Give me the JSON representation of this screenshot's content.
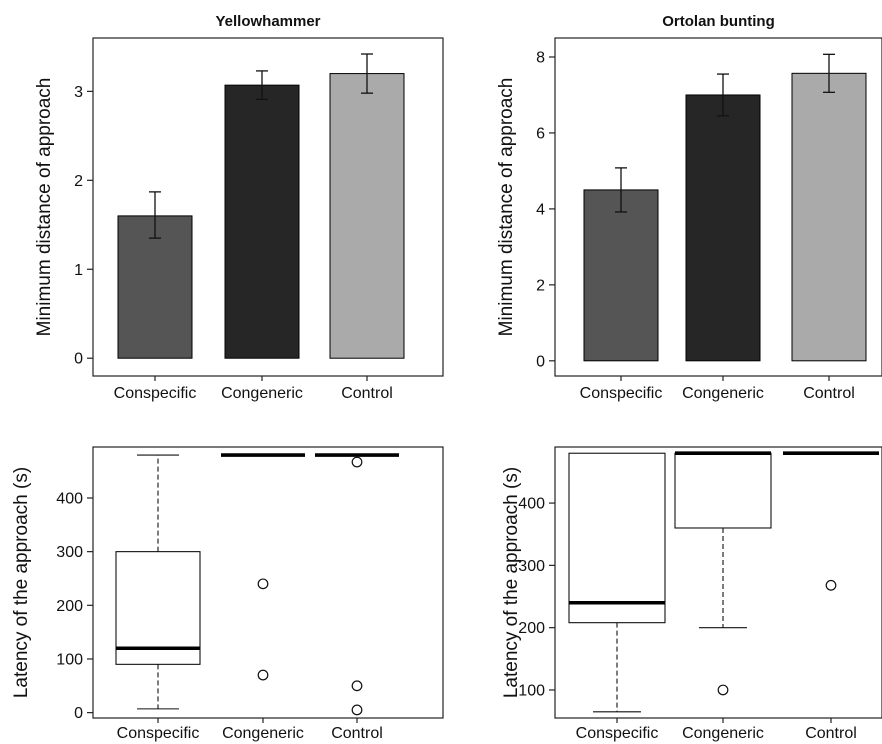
{
  "chart_data": [
    {
      "type": "bar",
      "title": "Yellowhammer",
      "ylabel": "Minimum distance of approach",
      "xlabel": "",
      "categories": [
        "Conspecific",
        "Congeneric",
        "Control"
      ],
      "values": [
        1.6,
        3.07,
        3.2
      ],
      "error_low": [
        1.35,
        2.91,
        2.98
      ],
      "error_high": [
        1.87,
        3.23,
        3.42
      ],
      "colors": [
        "#555555",
        "#262626",
        "#aaaaaa"
      ],
      "ylim": [
        -0.2,
        3.6
      ],
      "yticks": [
        "0",
        "1",
        "2",
        "3"
      ]
    },
    {
      "type": "bar",
      "title": "Ortolan bunting",
      "ylabel": "Minimum distance of approach",
      "xlabel": "",
      "categories": [
        "Conspecific",
        "Congeneric",
        "Control"
      ],
      "values": [
        4.5,
        7.0,
        7.57
      ],
      "error_low": [
        3.92,
        6.45,
        7.07
      ],
      "error_high": [
        5.08,
        7.55,
        8.07
      ],
      "colors": [
        "#555555",
        "#262626",
        "#aaaaaa"
      ],
      "ylim": [
        -0.4,
        8.5
      ],
      "yticks": [
        "0",
        "2",
        "4",
        "6",
        "8"
      ]
    },
    {
      "type": "box",
      "title": "",
      "ylabel": "Latency of the approach (s)",
      "xlabel": "",
      "categories": [
        "Conspecific",
        "Congeneric",
        "Control"
      ],
      "boxes": [
        {
          "whisker_low": 7,
          "q1": 90,
          "median": 120,
          "q3": 300,
          "whisker_high": 480,
          "outliers": []
        },
        {
          "whisker_low": 480,
          "q1": 480,
          "median": 480,
          "q3": 480,
          "whisker_high": 480,
          "outliers": [
            240,
            70
          ]
        },
        {
          "whisker_low": 480,
          "q1": 480,
          "median": 480,
          "q3": 480,
          "whisker_high": 480,
          "outliers": [
            467,
            50,
            5
          ]
        }
      ],
      "ylim": [
        -10,
        495
      ],
      "yticks": [
        "0",
        "100",
        "200",
        "300",
        "400"
      ]
    },
    {
      "type": "box",
      "title": "",
      "ylabel": "Latency of the approach (s)",
      "xlabel": "",
      "categories": [
        "Conspecific",
        "Congeneric",
        "Control"
      ],
      "boxes": [
        {
          "whisker_low": 65,
          "q1": 208,
          "median": 240,
          "q3": 480,
          "whisker_high": 480,
          "outliers": []
        },
        {
          "whisker_low": 200,
          "q1": 360,
          "median": 480,
          "q3": 480,
          "whisker_high": 480,
          "outliers": [
            100
          ]
        },
        {
          "whisker_low": 480,
          "q1": 480,
          "median": 480,
          "q3": 480,
          "whisker_high": 480,
          "outliers": [
            268
          ]
        }
      ],
      "ylim": [
        55,
        490
      ],
      "yticks": [
        "100",
        "200",
        "300",
        "400"
      ]
    }
  ]
}
